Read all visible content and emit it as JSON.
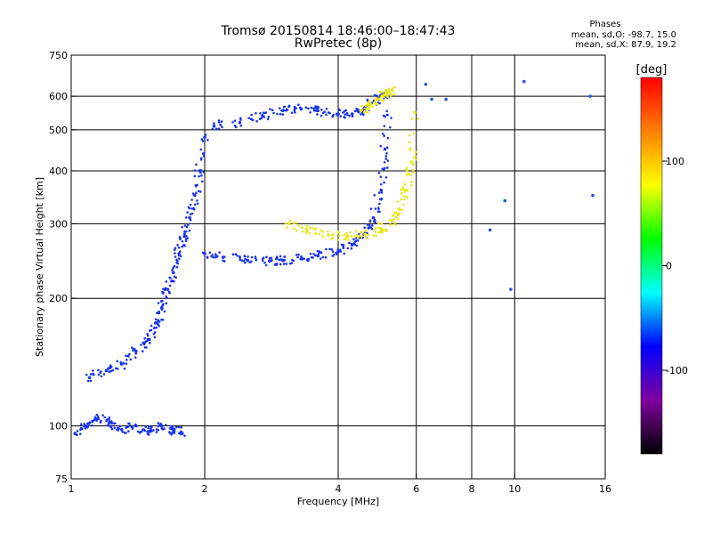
{
  "header": {
    "title_line1": "Tromsø 20150814 18:46:00–18:47:43",
    "title_line2": "RwPretec (8p)",
    "phase_title": "Phases",
    "stat_o": "mean, sd,O: -98.7, 15.0",
    "stat_x": "mean, sd,X:  87.9, 19.2"
  },
  "chart_data": {
    "type": "scatter",
    "xlabel": "Frequency [MHz]",
    "ylabel": "Stationary phase Virtual Height [km]",
    "x_scale": "log",
    "y_scale": "log",
    "xlim": [
      1,
      16
    ],
    "ylim": [
      75,
      750
    ],
    "x_ticks": [
      1,
      2,
      4,
      6,
      8,
      10,
      16
    ],
    "y_ticks": [
      75,
      100,
      200,
      300,
      400,
      500,
      600,
      750
    ],
    "x_gridlines": [
      2,
      4,
      6,
      8,
      10
    ],
    "y_gridlines": [
      100,
      200,
      300,
      400,
      500,
      600
    ],
    "grid": true,
    "colorbar": {
      "label": "[deg]",
      "range": [
        -180,
        180
      ],
      "ticks": [
        100,
        0,
        -100
      ],
      "colors": [
        "#000000",
        "#8000a0",
        "#0000ff",
        "#00ffff",
        "#00ff00",
        "#ffff00",
        "#ff8000",
        "#ff0000"
      ],
      "placement": "right"
    },
    "series": [
      {
        "id": "o-low",
        "color": "#1a33ee",
        "x": [
          1.02,
          1.08,
          1.15,
          1.22,
          1.3,
          1.4,
          1.5,
          1.6,
          1.7,
          1.78
        ],
        "y": [
          96,
          100,
          104,
          102,
          98,
          100,
          97,
          100,
          98,
          96
        ]
      },
      {
        "id": "o-mid",
        "color": "#1a33ee",
        "x": [
          1.1,
          1.2,
          1.3,
          1.4,
          1.5,
          1.55,
          1.6,
          1.65,
          1.7,
          1.75,
          1.8,
          1.85,
          1.9,
          1.95,
          2.0
        ],
        "y": [
          130,
          135,
          140,
          150,
          160,
          175,
          190,
          210,
          230,
          255,
          280,
          310,
          350,
          400,
          480
        ]
      },
      {
        "id": "o-f2",
        "color": "#1a33ee",
        "x": [
          2.0,
          2.2,
          2.5,
          2.8,
          3.0,
          3.3,
          3.6,
          4.0,
          4.3,
          4.6,
          4.8,
          5.0,
          5.1,
          5.2
        ],
        "y": [
          255,
          250,
          246,
          245,
          246,
          248,
          252,
          258,
          268,
          285,
          310,
          360,
          450,
          600
        ]
      },
      {
        "id": "o-upper",
        "color": "#1a33ee",
        "x": [
          2.1,
          2.4,
          2.7,
          3.0,
          3.3,
          3.6,
          4.0,
          4.3,
          4.6,
          4.9,
          5.1
        ],
        "y": [
          510,
          520,
          540,
          555,
          560,
          555,
          545,
          545,
          560,
          590,
          610
        ]
      },
      {
        "id": "x-f2",
        "color": "#e8e81a",
        "x": [
          3.1,
          3.4,
          3.8,
          4.2,
          4.6,
          5.0,
          5.3,
          5.5,
          5.7,
          5.85,
          5.95
        ],
        "y": [
          300,
          290,
          282,
          280,
          283,
          292,
          305,
          325,
          360,
          420,
          550
        ]
      },
      {
        "id": "x-upper",
        "color": "#e8e81a",
        "x": [
          4.5,
          4.7,
          4.9,
          5.1,
          5.3
        ],
        "y": [
          555,
          570,
          590,
          605,
          620
        ]
      },
      {
        "id": "scatter-high",
        "color": "#2255dd",
        "x": [
          6.3,
          6.5,
          7.0,
          9.5,
          9.8,
          10.5,
          14.8,
          15.0,
          8.8
        ],
        "y": [
          640,
          590,
          590,
          340,
          210,
          650,
          600,
          350,
          290
        ]
      }
    ]
  }
}
